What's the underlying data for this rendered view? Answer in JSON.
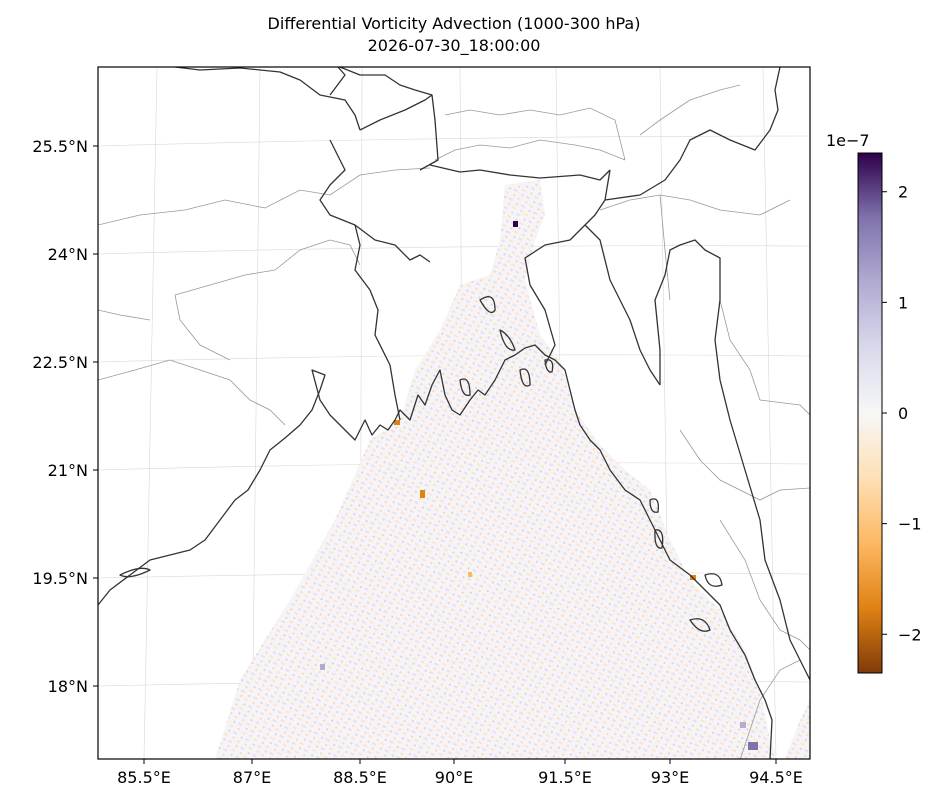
{
  "title": "Differential Vorticity Advection (1000-300 hPa)",
  "subtitle": "2026-07-30_18:00:00",
  "map": {
    "projection": "lambert-conformal",
    "lon_range": [
      85.0,
      95.0
    ],
    "lat_range": [
      17.0,
      26.5
    ],
    "lon_ticks": [
      "85.5°E",
      "87°E",
      "88.5°E",
      "90°E",
      "91.5°E",
      "93°E",
      "94.5°E"
    ],
    "lat_ticks": [
      "25.5°N",
      "24°N",
      "22.5°N",
      "21°N",
      "19.5°N",
      "18°N"
    ],
    "gridlines": true,
    "coastline_color": "#333333",
    "border_color": "#999999"
  },
  "colorbar": {
    "exponent_label": "1e−7",
    "ticks": [
      "2",
      "1",
      "0",
      "−1",
      "−2"
    ],
    "tick_values": [
      2,
      1,
      0,
      -1,
      -2
    ],
    "vmin": -2.35,
    "vmax": 2.35,
    "colormap": "PuOr",
    "colors": [
      "#7f3b08",
      "#e08214",
      "#fdb863",
      "#fee0b6",
      "#f7f7f7",
      "#d8daeb",
      "#b2abd2",
      "#8073ac",
      "#2d004b"
    ]
  }
}
